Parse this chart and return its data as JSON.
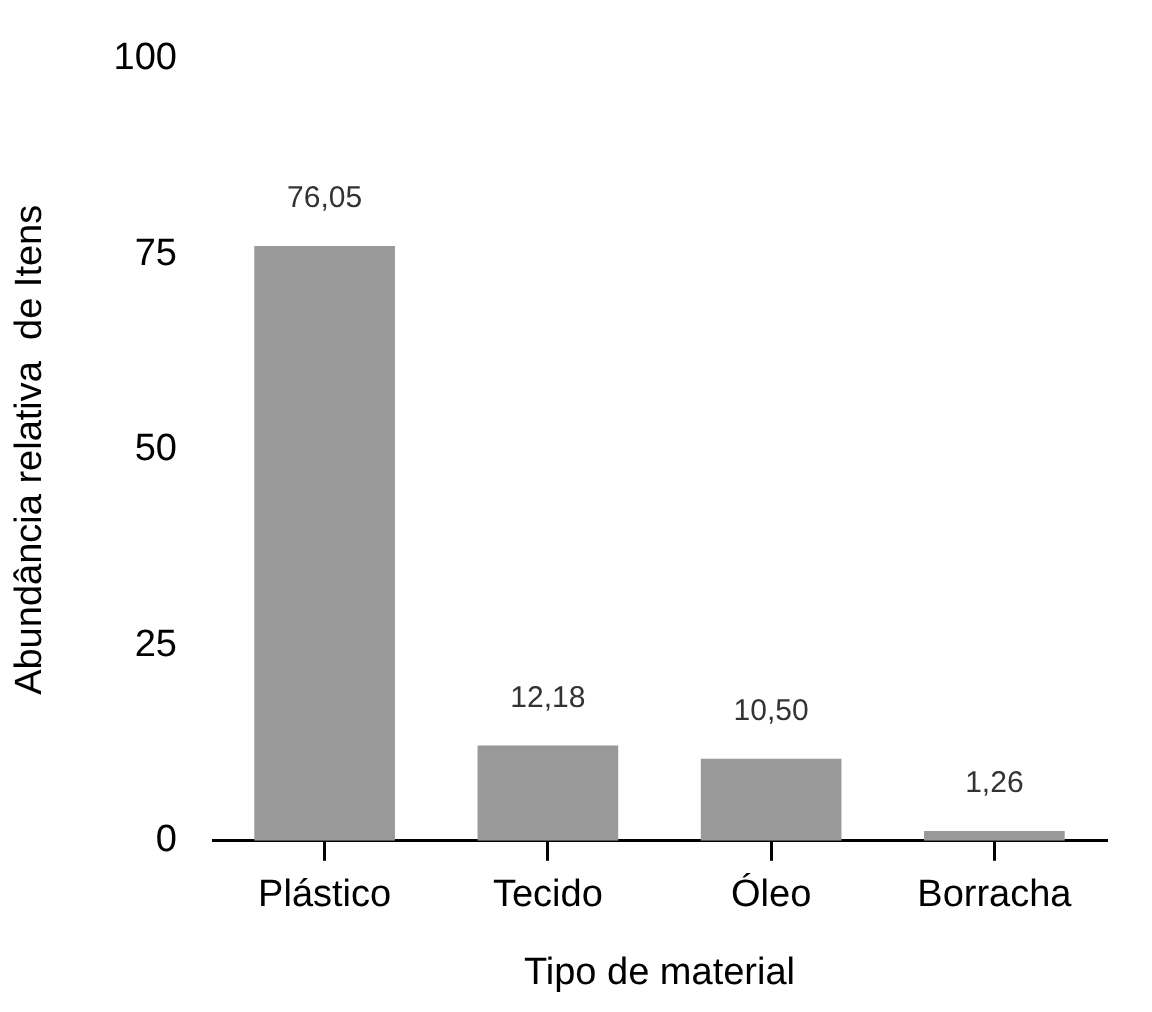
{
  "chart_data": {
    "type": "bar",
    "xlabel": "Tipo de material",
    "ylabel": "Abundância relativa  de Itens",
    "categories": [
      "Plástico",
      "Tecido",
      "Óleo",
      "Borracha"
    ],
    "values": [
      76.05,
      12.18,
      10.5,
      1.26
    ],
    "value_labels": [
      "76,05",
      "12,18",
      "10,50",
      "1,26"
    ],
    "color": "#999999",
    "ylim": [
      0,
      100
    ],
    "yticks": [
      0,
      25,
      50,
      75,
      100
    ],
    "grid": false,
    "legend": false
  }
}
